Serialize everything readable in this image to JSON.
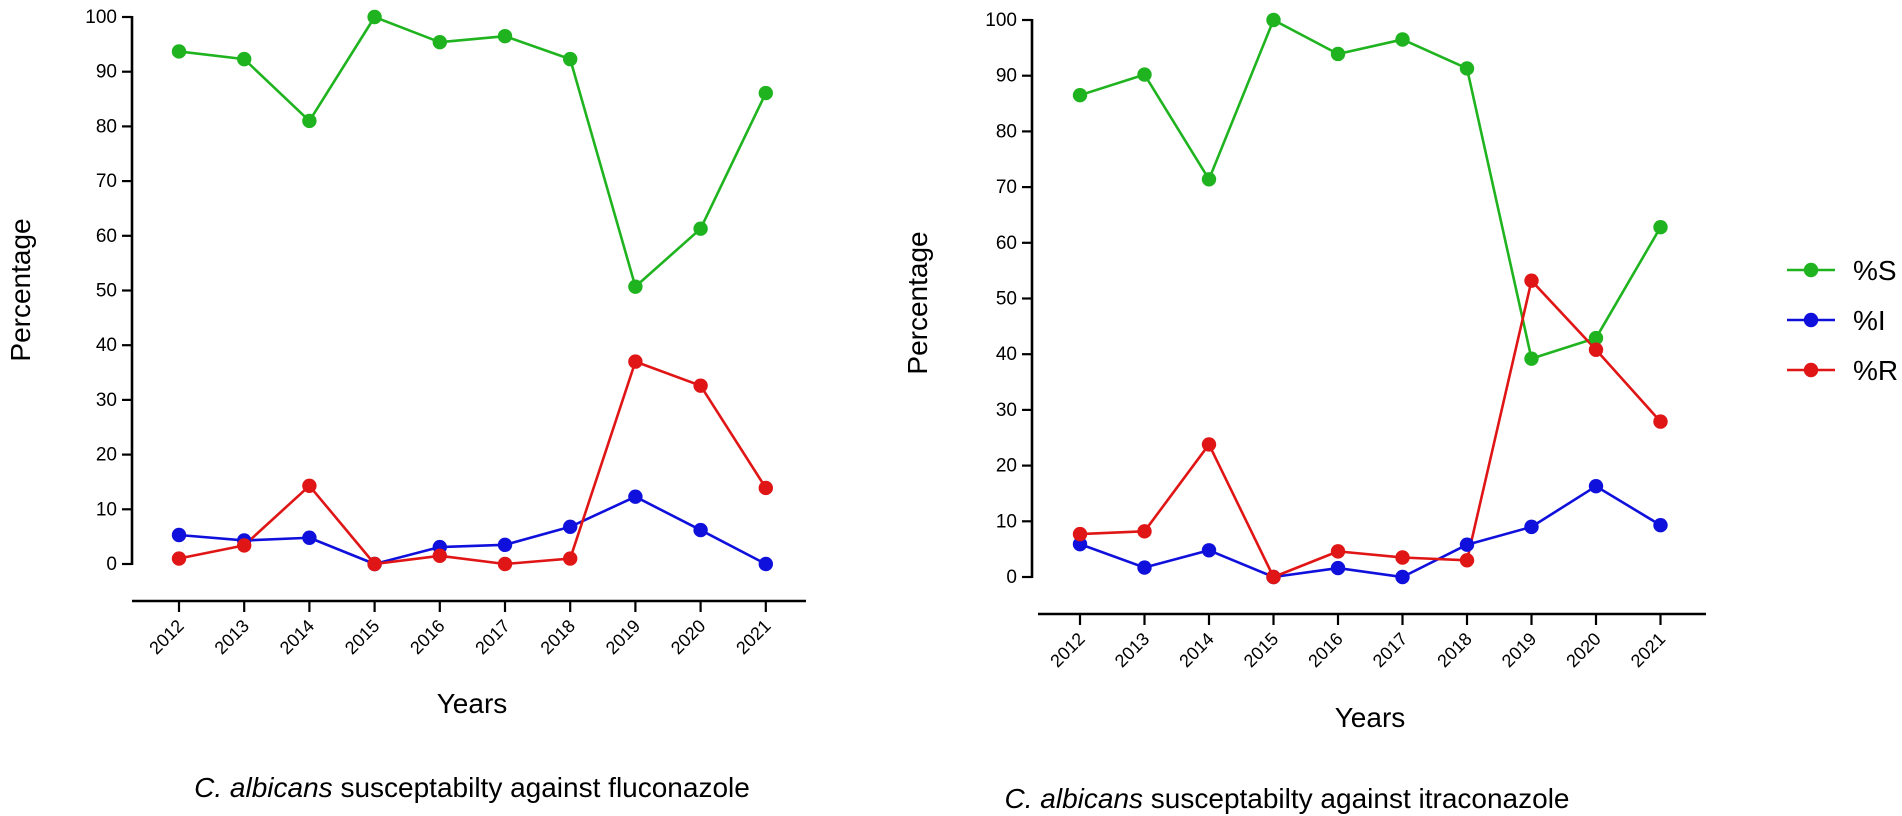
{
  "chart_data": [
    {
      "type": "line",
      "title_italic": "C. albicans",
      "title_rest": " susceptabilty against fluconazole",
      "xlabel": "Years",
      "ylabel": "Percentage",
      "ylim": [
        0,
        100
      ],
      "yticks": [
        0,
        10,
        20,
        30,
        40,
        50,
        60,
        70,
        80,
        90,
        100
      ],
      "categories": [
        "2012",
        "2013",
        "2014",
        "2015",
        "2016",
        "2017",
        "2018",
        "2019",
        "2020",
        "2021"
      ],
      "series": [
        {
          "name": "%S",
          "color": "#1fb41f",
          "values": [
            93.7,
            92.3,
            81.0,
            100.0,
            95.4,
            96.5,
            92.3,
            50.7,
            61.3,
            86.1
          ]
        },
        {
          "name": "%I",
          "color": "#1010dc",
          "values": [
            5.3,
            4.3,
            4.8,
            0.0,
            3.1,
            3.5,
            6.8,
            12.3,
            6.2,
            0.0
          ]
        },
        {
          "name": "%R",
          "color": "#e01515",
          "values": [
            1.0,
            3.4,
            14.3,
            0.0,
            1.5,
            0.0,
            1.0,
            37.0,
            32.6,
            13.9
          ]
        }
      ]
    },
    {
      "type": "line",
      "title_italic": "C. albicans",
      "title_rest": " susceptabilty against itraconazole",
      "xlabel": "Years",
      "ylabel": "Percentage",
      "ylim": [
        0,
        100
      ],
      "yticks": [
        0,
        10,
        20,
        30,
        40,
        50,
        60,
        70,
        80,
        90,
        100
      ],
      "categories": [
        "2012",
        "2013",
        "2014",
        "2015",
        "2016",
        "2017",
        "2018",
        "2019",
        "2020",
        "2021"
      ],
      "series": [
        {
          "name": "%S",
          "color": "#1fb41f",
          "values": [
            86.5,
            90.2,
            71.4,
            100.0,
            93.9,
            96.5,
            91.3,
            39.2,
            42.9,
            62.8
          ]
        },
        {
          "name": "%I",
          "color": "#1010dc",
          "values": [
            5.9,
            1.7,
            4.8,
            0.0,
            1.6,
            0.0,
            5.8,
            9.0,
            16.3,
            9.3
          ]
        },
        {
          "name": "%R",
          "color": "#e01515",
          "values": [
            7.7,
            8.2,
            23.8,
            0.0,
            4.6,
            3.5,
            3.0,
            53.2,
            40.8,
            27.9
          ]
        }
      ]
    }
  ],
  "legend": [
    {
      "label": "%S",
      "color": "#1fb41f"
    },
    {
      "label": "%I",
      "color": "#1010dc"
    },
    {
      "label": "%R",
      "color": "#e01515"
    }
  ]
}
